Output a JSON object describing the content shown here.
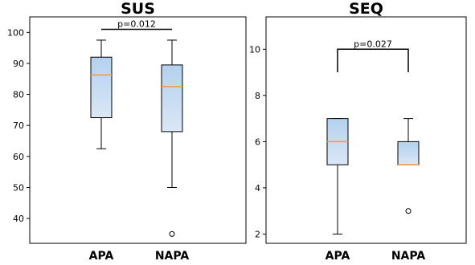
{
  "chart_data": [
    {
      "type": "box",
      "title": "SUS",
      "categories": [
        "APA",
        "NAPA"
      ],
      "ylim": [
        32,
        105
      ],
      "yticks": [
        40,
        50,
        60,
        70,
        80,
        90,
        100
      ],
      "boxes": [
        {
          "whisker_low": 62.5,
          "q1": 72.5,
          "median": 86.25,
          "q3": 92.0,
          "whisker_high": 97.5,
          "outliers": []
        },
        {
          "whisker_low": 50.0,
          "q1": 68.0,
          "median": 82.5,
          "q3": 89.5,
          "whisker_high": 97.5,
          "outliers": [
            35.0
          ]
        }
      ],
      "significance": {
        "label": "p=0.012",
        "bar_y": 101.0,
        "left_y": 101.0,
        "right_y": 101.0
      }
    },
    {
      "type": "box",
      "title": "SEQ",
      "categories": [
        "APA",
        "NAPA"
      ],
      "ylim": [
        1.6,
        11.4
      ],
      "yticks": [
        2,
        4,
        6,
        8,
        10
      ],
      "boxes": [
        {
          "whisker_low": 2.0,
          "q1": 5.0,
          "median": 6.0,
          "q3": 7.0,
          "whisker_high": 7.0,
          "outliers": []
        },
        {
          "whisker_low": 5.0,
          "q1": 5.0,
          "median": 5.0,
          "q3": 6.0,
          "whisker_high": 7.0,
          "outliers": [
            3.0
          ]
        }
      ],
      "significance": {
        "label": "p=0.027",
        "bar_y": 10.0,
        "left_y": 9.0,
        "right_y": 9.0
      }
    }
  ],
  "style": {
    "box_fill_top": "#b3d1ee",
    "box_fill_bottom": "#dae7f5",
    "median_color": "#f19a4b",
    "line_color": "#000000"
  }
}
